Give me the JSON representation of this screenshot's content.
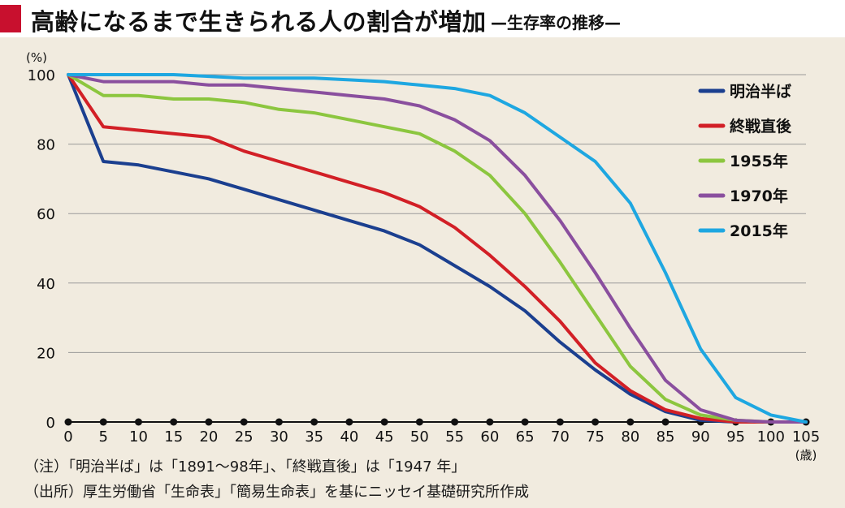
{
  "header": {
    "title": "高齢になるまで生きられる人の割合が増加",
    "subtitle": "—生存率の推移—"
  },
  "notes": {
    "note1": "（注）「明治半ば」は「1891〜98年」、「終戦直後」は「1947 年」",
    "note2": "（出所）厚生労働省「生命表」「簡易生命表」を基にニッセイ基礎研究所作成"
  },
  "chart_data": {
    "type": "line",
    "title": "高齢になるまで生きられる人の割合が増加",
    "ylabel": "(%)",
    "xlabel": "(歳)",
    "x": [
      0,
      5,
      10,
      15,
      20,
      25,
      30,
      35,
      40,
      45,
      50,
      55,
      60,
      65,
      70,
      75,
      80,
      85,
      90,
      95,
      100,
      105
    ],
    "ylim": [
      0,
      100
    ],
    "xlim": [
      0,
      105
    ],
    "yticks": [
      0,
      20,
      40,
      60,
      80,
      100
    ],
    "grid": "horizontal",
    "legend_position": "right",
    "series": [
      {
        "name": "明治半ば",
        "color": "#1b3f8f",
        "values": [
          100,
          75,
          74,
          72,
          70,
          67,
          64,
          61,
          58,
          55,
          51,
          45,
          39,
          32,
          23,
          15,
          8,
          3,
          0.5,
          0,
          0,
          0
        ]
      },
      {
        "name": "終戦直後",
        "color": "#d21f26",
        "values": [
          100,
          85,
          84,
          83,
          82,
          78,
          75,
          72,
          69,
          66,
          62,
          56,
          48,
          39,
          29,
          17,
          9,
          3.5,
          1,
          0,
          0,
          0
        ]
      },
      {
        "name": "1955年",
        "color": "#8cc63f",
        "values": [
          100,
          94,
          94,
          93,
          93,
          92,
          90,
          89,
          87,
          85,
          83,
          78,
          71,
          60,
          46,
          31,
          16,
          6.5,
          2,
          0.5,
          0,
          0
        ]
      },
      {
        "name": "1970年",
        "color": "#8a4f9e",
        "values": [
          100,
          98,
          98,
          98,
          97,
          97,
          96,
          95,
          94,
          93,
          91,
          87,
          81,
          71,
          58,
          43,
          27,
          12,
          3.5,
          0.5,
          0,
          0
        ]
      },
      {
        "name": "2015年",
        "color": "#1ea7e1",
        "values": [
          100,
          100,
          100,
          100,
          99.5,
          99,
          99,
          99,
          98.5,
          98,
          97,
          96,
          94,
          89,
          82,
          75,
          63,
          43,
          21,
          7,
          2,
          0
        ]
      }
    ]
  }
}
